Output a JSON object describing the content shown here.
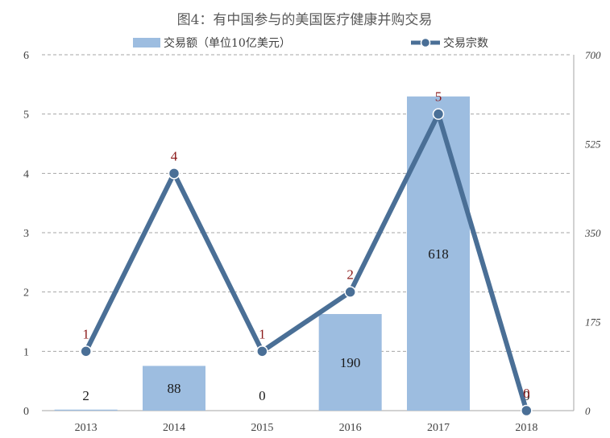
{
  "chart_data": {
    "type": "bar+line",
    "title": "图4：有中国参与的美国医疗健康并购交易",
    "categories": [
      "2013",
      "2014",
      "2015",
      "2016",
      "2017",
      "2018"
    ],
    "series": [
      {
        "name": "交易额（单位10亿美元）",
        "type": "bar",
        "axis": "right",
        "values": [
          2,
          88,
          0,
          190,
          618,
          0
        ],
        "labels": [
          "2",
          "88",
          "0",
          "190",
          "618",
          "0"
        ],
        "color": "#9dbde0"
      },
      {
        "name": "交易宗数",
        "type": "line",
        "axis": "left",
        "values": [
          1,
          4,
          1,
          2,
          5,
          0
        ],
        "labels": [
          "1",
          "4",
          "1",
          "2",
          "5",
          "0"
        ],
        "color": "#4a6f96"
      }
    ],
    "left_axis": {
      "ticks": [
        "0",
        "1",
        "2",
        "3",
        "4",
        "5",
        "6"
      ]
    },
    "right_axis": {
      "ticks": [
        "0",
        "175",
        "350",
        "525",
        "700"
      ]
    },
    "grid": true,
    "legend": "top"
  }
}
